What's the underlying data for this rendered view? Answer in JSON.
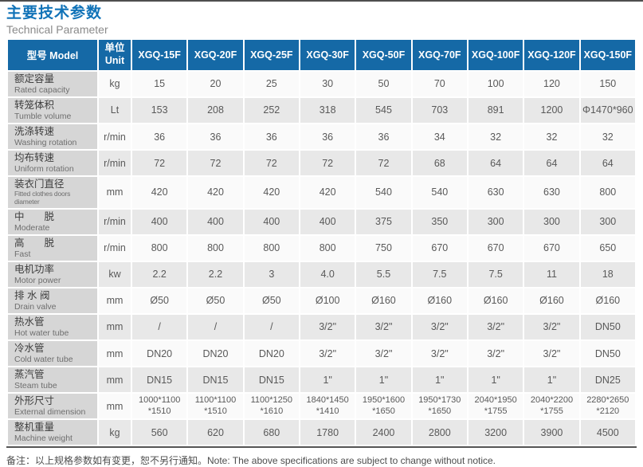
{
  "page": {
    "title_cn": "主要技术参数",
    "title_en": "Technical Parameter",
    "note": "备注：以上规格参数如有变更，恕不另行通知。Note: The above specifications are subject to change without notice."
  },
  "colors": {
    "title_blue": "#1173b8",
    "header_blue": "#1569a6",
    "label_gray": "#d6d6d6",
    "row_light": "#fafafa",
    "row_dark": "#e8e8e8",
    "top_line": "#4e4e4e"
  },
  "table": {
    "header": {
      "model_label": "型号 Model",
      "unit_label_cn": "单位",
      "unit_label_en": "Unit",
      "models": [
        "XGQ-15F",
        "XGQ-20F",
        "XGQ-25F",
        "XGQ-30F",
        "XGQ-50F",
        "XGQ-70F",
        "XGQ-100F",
        "XGQ-120F",
        "XGQ-150F"
      ]
    },
    "rows": [
      {
        "cn": "额定容量",
        "en": "Rated capacity",
        "unit": "kg",
        "values": [
          "15",
          "20",
          "25",
          "30",
          "50",
          "70",
          "100",
          "120",
          "150"
        ]
      },
      {
        "cn": "转笼体积",
        "en": "Tumble volume",
        "unit": "Lt",
        "values": [
          "153",
          "208",
          "252",
          "318",
          "545",
          "703",
          "891",
          "1200",
          "Φ1470*960"
        ]
      },
      {
        "cn": "洗涤转速",
        "en": "Washing rotation",
        "unit": "r/min",
        "values": [
          "36",
          "36",
          "36",
          "36",
          "36",
          "34",
          "32",
          "32",
          "32"
        ]
      },
      {
        "cn": "均布转速",
        "en": "Uniform rotation",
        "unit": "r/min",
        "values": [
          "72",
          "72",
          "72",
          "72",
          "72",
          "68",
          "64",
          "64",
          "64"
        ]
      },
      {
        "cn": "装衣门直径",
        "en": "Fitted clothes doors diameter",
        "unit": "mm",
        "values": [
          "420",
          "420",
          "420",
          "420",
          "540",
          "540",
          "630",
          "630",
          "800"
        ]
      },
      {
        "cn": "中　　脱",
        "en": "Moderate",
        "unit": "r/min",
        "values": [
          "400",
          "400",
          "400",
          "400",
          "375",
          "350",
          "300",
          "300",
          "300"
        ]
      },
      {
        "cn": "高　　脱",
        "en": "Fast",
        "unit": "r/min",
        "values": [
          "800",
          "800",
          "800",
          "800",
          "750",
          "670",
          "670",
          "670",
          "650"
        ]
      },
      {
        "cn": "电机功率",
        "en": "Motor power",
        "unit": "kw",
        "values": [
          "2.2",
          "2.2",
          "3",
          "4.0",
          "5.5",
          "7.5",
          "7.5",
          "11",
          "18"
        ]
      },
      {
        "cn": "排 水 阀",
        "en": "Drain valve",
        "unit": "mm",
        "values": [
          "Ø50",
          "Ø50",
          "Ø50",
          "Ø100",
          "Ø160",
          "Ø160",
          "Ø160",
          "Ø160",
          "Ø160"
        ]
      },
      {
        "cn": "热水管",
        "en": "Hot water tube",
        "unit": "mm",
        "values": [
          "/",
          "/",
          "/",
          "3/2\"",
          "3/2\"",
          "3/2\"",
          "3/2\"",
          "3/2\"",
          "DN50"
        ]
      },
      {
        "cn": "冷水管",
        "en": "Cold water tube",
        "unit": "mm",
        "values": [
          "DN20",
          "DN20",
          "DN20",
          "3/2\"",
          "3/2\"",
          "3/2\"",
          "3/2\"",
          "3/2\"",
          "DN50"
        ]
      },
      {
        "cn": "蒸汽管",
        "en": "Steam tube",
        "unit": "mm",
        "values": [
          "DN15",
          "DN15",
          "DN15",
          "1\"",
          "1\"",
          "1\"",
          "1\"",
          "1\"",
          "DN25"
        ]
      },
      {
        "cn": "外形尺寸",
        "en": "External dimension",
        "unit": "mm",
        "values": [
          "1000*1100\n*1510",
          "1100*1100\n*1510",
          "1100*1250\n*1610",
          "1840*1450\n*1410",
          "1950*1600\n*1650",
          "1950*1730\n*1650",
          "2040*1950\n*1755",
          "2040*2200\n*1755",
          "2280*2650\n*2120"
        ]
      },
      {
        "cn": "整机重量",
        "en": "Machine weight",
        "unit": "kg",
        "values": [
          "560",
          "620",
          "680",
          "1780",
          "2400",
          "2800",
          "3200",
          "3900",
          "4500"
        ]
      }
    ]
  }
}
